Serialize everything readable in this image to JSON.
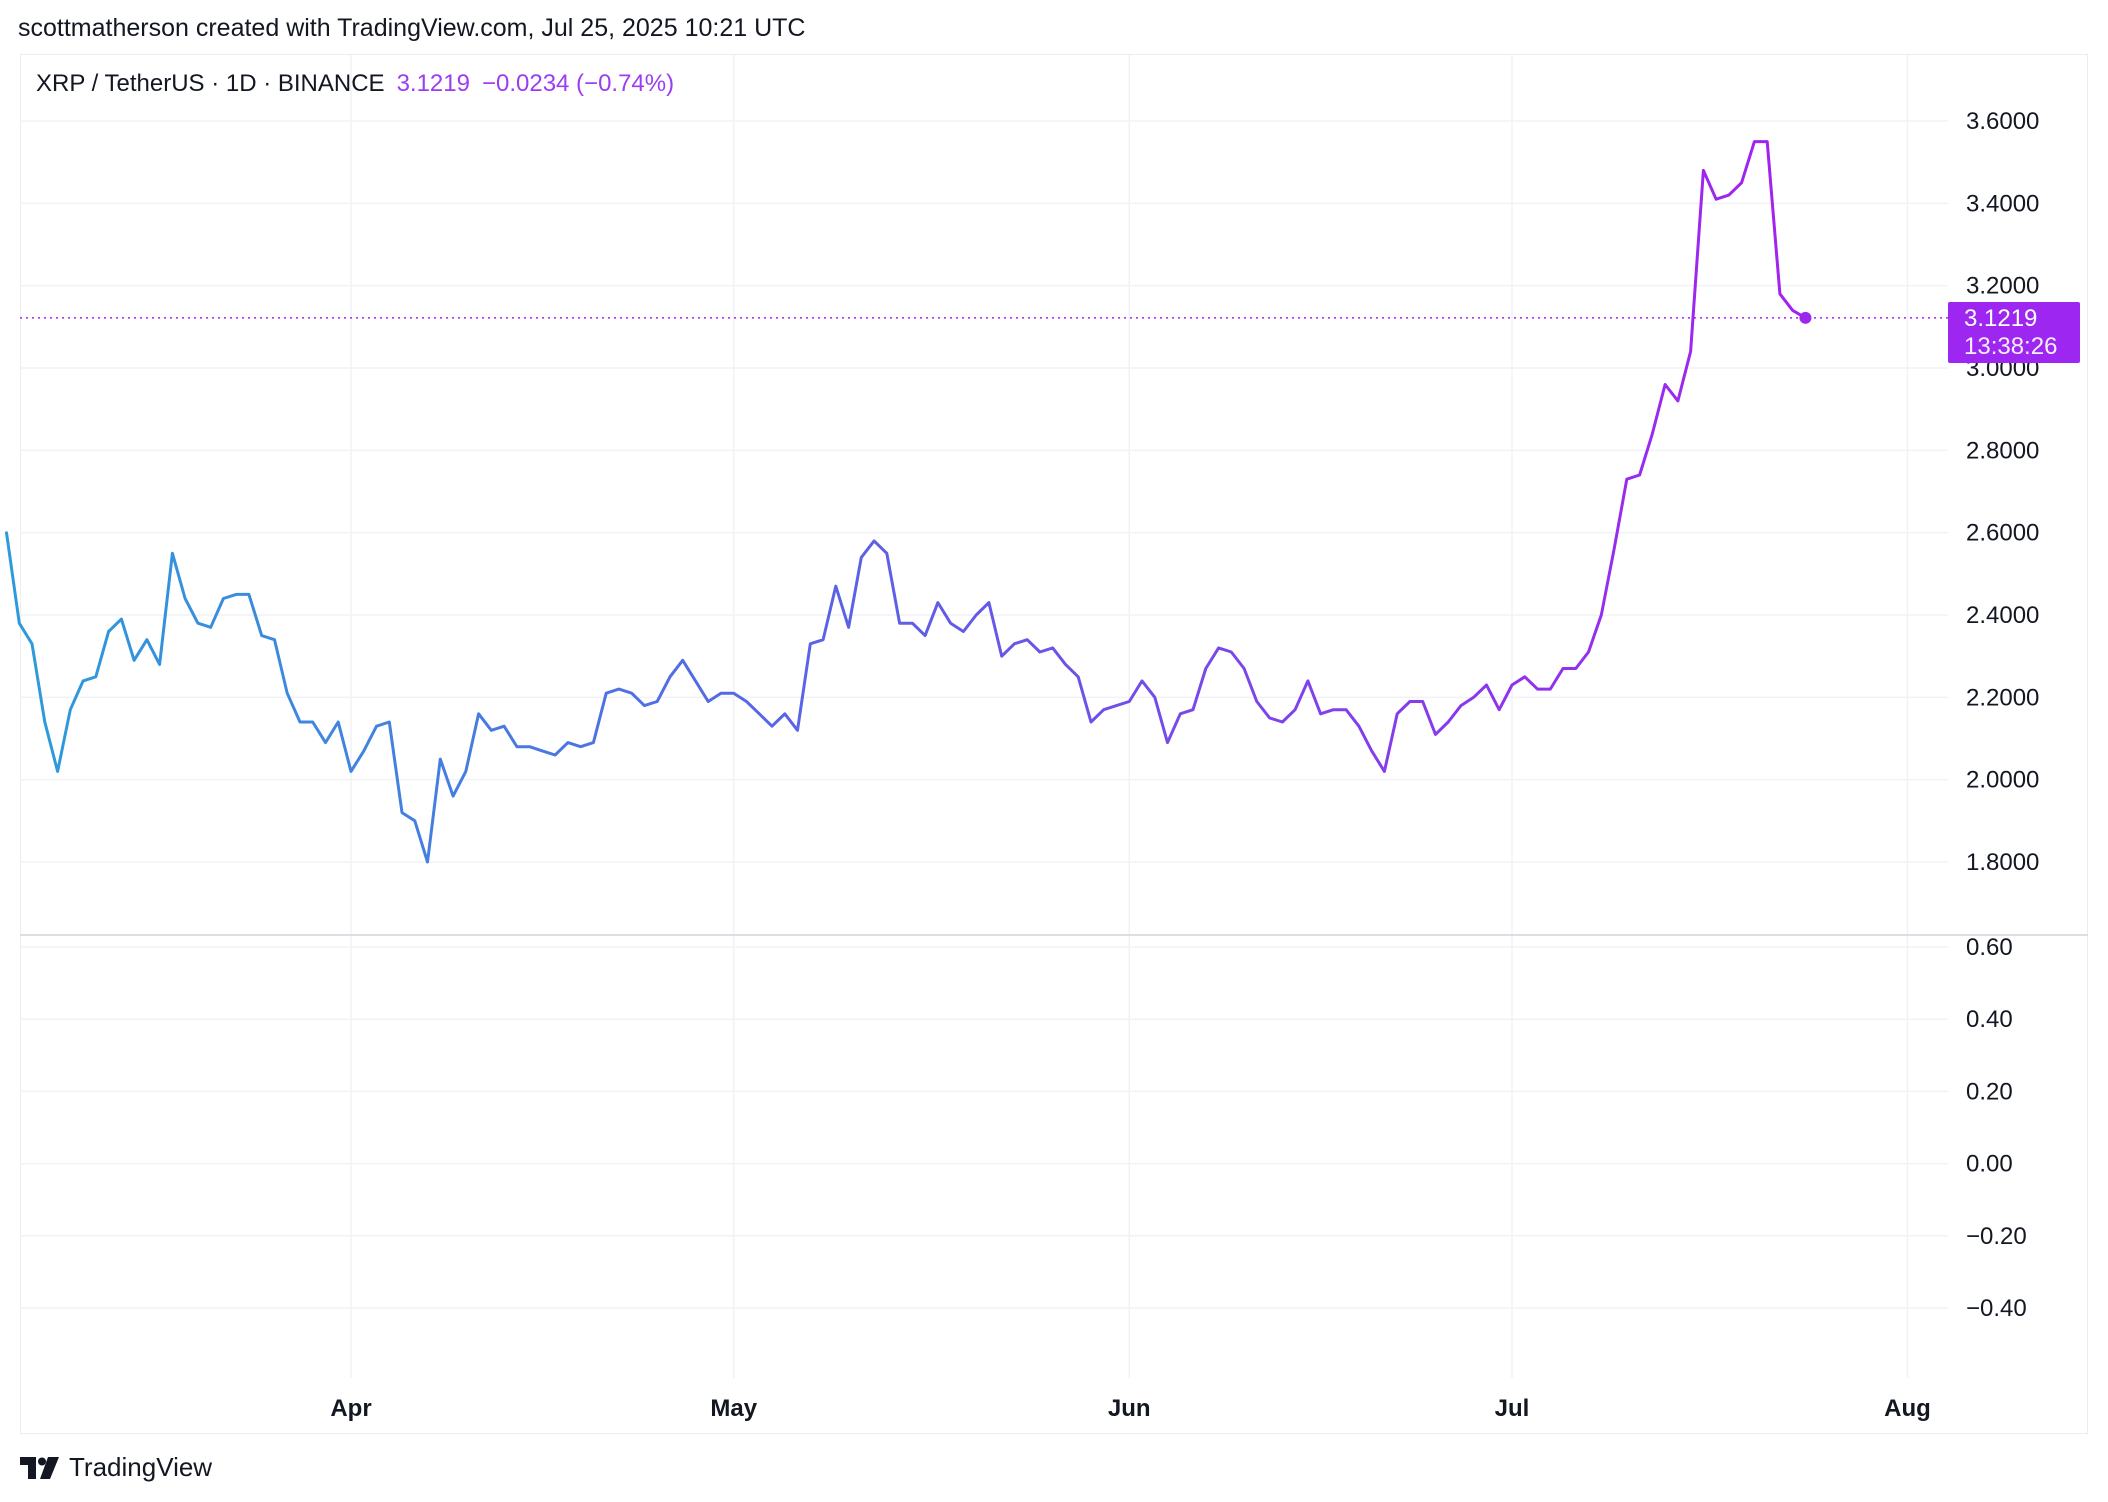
{
  "header": {
    "attribution": "scottmatherson created with TradingView.com, Jul 25, 2025 10:21 UTC"
  },
  "legend": {
    "symbol": "XRP / TetherUS · 1D · BINANCE",
    "price": "3.1219",
    "change": "−0.0234 (−0.74%)"
  },
  "price_tag": {
    "price": "3.1219",
    "countdown": "13:38:26"
  },
  "footer": {
    "brand": "TradingView"
  },
  "colors": {
    "line_start": "#2d9bdb",
    "line_mid": "#5a63e6",
    "line_end": "#a61ff0",
    "price_tag": "#9d27f0",
    "grid": "#f0f2f5"
  },
  "icons": {
    "logo": "tradingview-logo-icon"
  },
  "chart_data": {
    "type": "line",
    "x_unit": "daily candles, Mar 05 2025 – Jul 25 2025",
    "x_ticks": [
      "Apr",
      "May",
      "Jun",
      "Jul",
      "Aug"
    ],
    "x_tick_dates": [
      "2025-04-01",
      "2025-05-01",
      "2025-06-01",
      "2025-07-01",
      "2025-08-01"
    ],
    "start_date": "2025-03-05",
    "price_axis": {
      "ticks": [
        "3.6000",
        "3.4000",
        "3.2000",
        "3.0000",
        "2.8000",
        "2.6000",
        "2.4000",
        "2.2000",
        "2.0000",
        "1.8000"
      ],
      "range": [
        1.6,
        3.75
      ]
    },
    "lower_axis": {
      "ticks": [
        "0.60",
        "0.40",
        "0.20",
        "0.00",
        "−0.20",
        "−0.40"
      ],
      "range": [
        -0.7,
        0.65
      ]
    },
    "last_price": 3.1219,
    "grid": true,
    "series": [
      {
        "values": [
          2.6,
          2.38,
          2.33,
          2.14,
          2.02,
          2.17,
          2.24,
          2.25,
          2.36,
          2.39,
          2.29,
          2.34,
          2.28,
          2.55,
          2.44,
          2.38,
          2.37,
          2.44,
          2.45,
          2.45,
          2.35,
          2.34,
          2.21,
          2.14,
          2.14,
          2.09,
          2.14,
          2.02,
          2.07,
          2.13,
          2.14,
          1.92,
          1.9,
          1.8,
          2.05,
          1.96,
          2.02,
          2.16,
          2.12,
          2.13,
          2.08,
          2.08,
          2.07,
          2.06,
          2.09,
          2.08,
          2.09,
          2.21,
          2.22,
          2.21,
          2.18,
          2.19,
          2.25,
          2.29,
          2.24,
          2.19,
          2.21,
          2.21,
          2.19,
          2.16,
          2.13,
          2.16,
          2.12,
          2.33,
          2.34,
          2.47,
          2.37,
          2.54,
          2.58,
          2.55,
          2.38,
          2.38,
          2.35,
          2.43,
          2.38,
          2.36,
          2.4,
          2.43,
          2.3,
          2.33,
          2.34,
          2.31,
          2.32,
          2.28,
          2.25,
          2.14,
          2.17,
          2.18,
          2.19,
          2.24,
          2.2,
          2.09,
          2.16,
          2.17,
          2.27,
          2.32,
          2.31,
          2.27,
          2.19,
          2.15,
          2.14,
          2.17,
          2.24,
          2.16,
          2.17,
          2.17,
          2.13,
          2.07,
          2.02,
          2.16,
          2.19,
          2.19,
          2.11,
          2.14,
          2.18,
          2.2,
          2.23,
          2.17,
          2.23,
          2.25,
          2.22,
          2.22,
          2.27,
          2.27,
          2.31,
          2.4,
          2.56,
          2.73,
          2.74,
          2.84,
          2.96,
          2.92,
          3.04,
          3.48,
          3.41,
          3.42,
          3.45,
          3.55,
          3.55,
          3.18,
          3.14,
          3.1219
        ]
      }
    ]
  }
}
